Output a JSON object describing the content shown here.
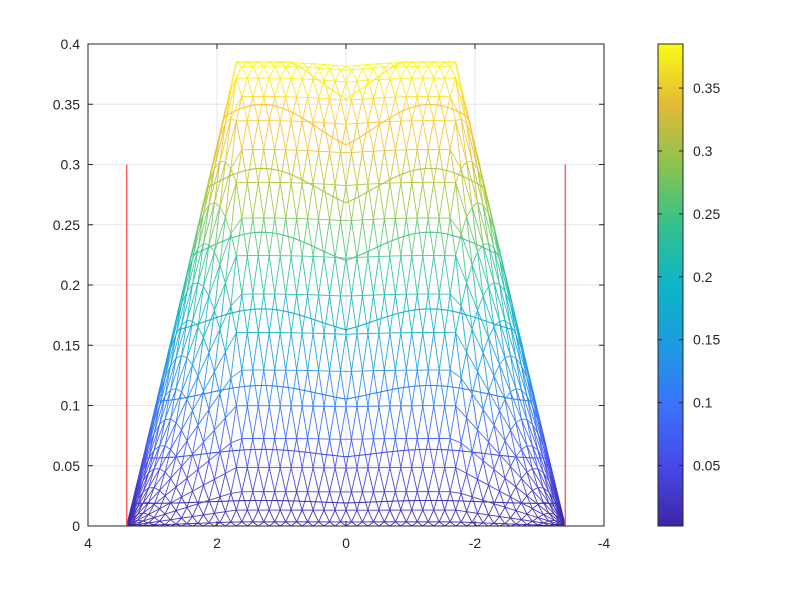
{
  "chart_data": {
    "type": "mesh",
    "xlim": [
      -4,
      4
    ],
    "x_reversed": true,
    "ylim": [
      0,
      0.4
    ],
    "x_ticks": [
      4,
      2,
      0,
      -2,
      -4
    ],
    "x_tick_labels": [
      "4",
      "2",
      "0",
      "-2",
      "-4"
    ],
    "y_ticks": [
      0,
      0.05,
      0.1,
      0.15,
      0.2,
      0.25,
      0.3,
      0.35,
      0.4
    ],
    "y_tick_labels": [
      "0",
      "0.05",
      "0.1",
      "0.15",
      "0.2",
      "0.25",
      "0.3",
      "0.35",
      "0.4"
    ],
    "grid": true,
    "surface": {
      "x_extent": [
        -3.4,
        3.4
      ],
      "top_plateau": [
        -1.7,
        1.7
      ],
      "peak_value": 0.385,
      "edge_value": 0.0,
      "contour_levels": [
        0.02,
        0.06,
        0.11,
        0.17,
        0.23,
        0.28,
        0.33,
        0.37
      ],
      "lobe_centers": [
        -1.3,
        1.3
      ]
    },
    "boundary_lines": {
      "color": "#ff5a5a",
      "lines": [
        {
          "x": 3.4,
          "y": [
            0,
            0.3
          ]
        },
        {
          "x": -3.4,
          "y": [
            0,
            0.3
          ]
        }
      ]
    },
    "colorbar": {
      "colormap": "parula",
      "range": [
        0.002,
        0.385
      ],
      "ticks": [
        0.05,
        0.1,
        0.15,
        0.2,
        0.25,
        0.3,
        0.35
      ],
      "tick_labels": [
        "0.05",
        "0.1",
        "0.15",
        "0.2",
        "0.25",
        "0.3",
        "0.35"
      ]
    }
  }
}
